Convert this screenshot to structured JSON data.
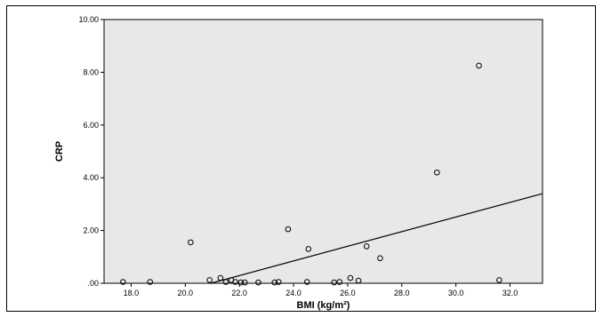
{
  "chart_data": {
    "type": "scatter",
    "title": "",
    "xlabel": "BMI (kg/m²)",
    "ylabel": "CRP",
    "xlim": [
      17.0,
      33.2
    ],
    "ylim": [
      0.0,
      10.0
    ],
    "x_ticks": [
      18,
      20,
      22,
      24,
      26,
      28,
      30,
      32
    ],
    "x_tick_labels": [
      "18.0",
      "20.0",
      "22.0",
      "24.0",
      "26.0",
      "28.0",
      "30.0",
      "32.0"
    ],
    "y_ticks": [
      0,
      2,
      4,
      6,
      8,
      10
    ],
    "y_tick_labels": [
      ".00",
      "2.00",
      "4.00",
      "6.00",
      "8.00",
      "10.00"
    ],
    "grid": false,
    "background_color": "#e8e8e8",
    "marker_color": "#000000",
    "line_color": "#000000",
    "points": [
      {
        "x": 17.7,
        "y": 0.05
      },
      {
        "x": 18.7,
        "y": 0.05
      },
      {
        "x": 20.2,
        "y": 1.55
      },
      {
        "x": 20.9,
        "y": 0.12
      },
      {
        "x": 21.3,
        "y": 0.2
      },
      {
        "x": 21.5,
        "y": 0.05
      },
      {
        "x": 21.7,
        "y": 0.12
      },
      {
        "x": 21.85,
        "y": 0.05
      },
      {
        "x": 22.05,
        "y": 0.03
      },
      {
        "x": 22.2,
        "y": 0.03
      },
      {
        "x": 22.7,
        "y": 0.03
      },
      {
        "x": 23.3,
        "y": 0.03
      },
      {
        "x": 23.45,
        "y": 0.05
      },
      {
        "x": 23.8,
        "y": 2.05
      },
      {
        "x": 24.5,
        "y": 0.05
      },
      {
        "x": 24.55,
        "y": 1.3
      },
      {
        "x": 25.5,
        "y": 0.03
      },
      {
        "x": 25.7,
        "y": 0.05
      },
      {
        "x": 26.1,
        "y": 0.2
      },
      {
        "x": 26.4,
        "y": 0.1
      },
      {
        "x": 26.7,
        "y": 1.4
      },
      {
        "x": 27.2,
        "y": 0.95
      },
      {
        "x": 29.3,
        "y": 4.2
      },
      {
        "x": 30.85,
        "y": 8.25
      },
      {
        "x": 31.6,
        "y": 0.12
      }
    ],
    "fit_line": {
      "x": [
        20.95,
        33.2
      ],
      "y": [
        0.0,
        3.4
      ]
    }
  }
}
